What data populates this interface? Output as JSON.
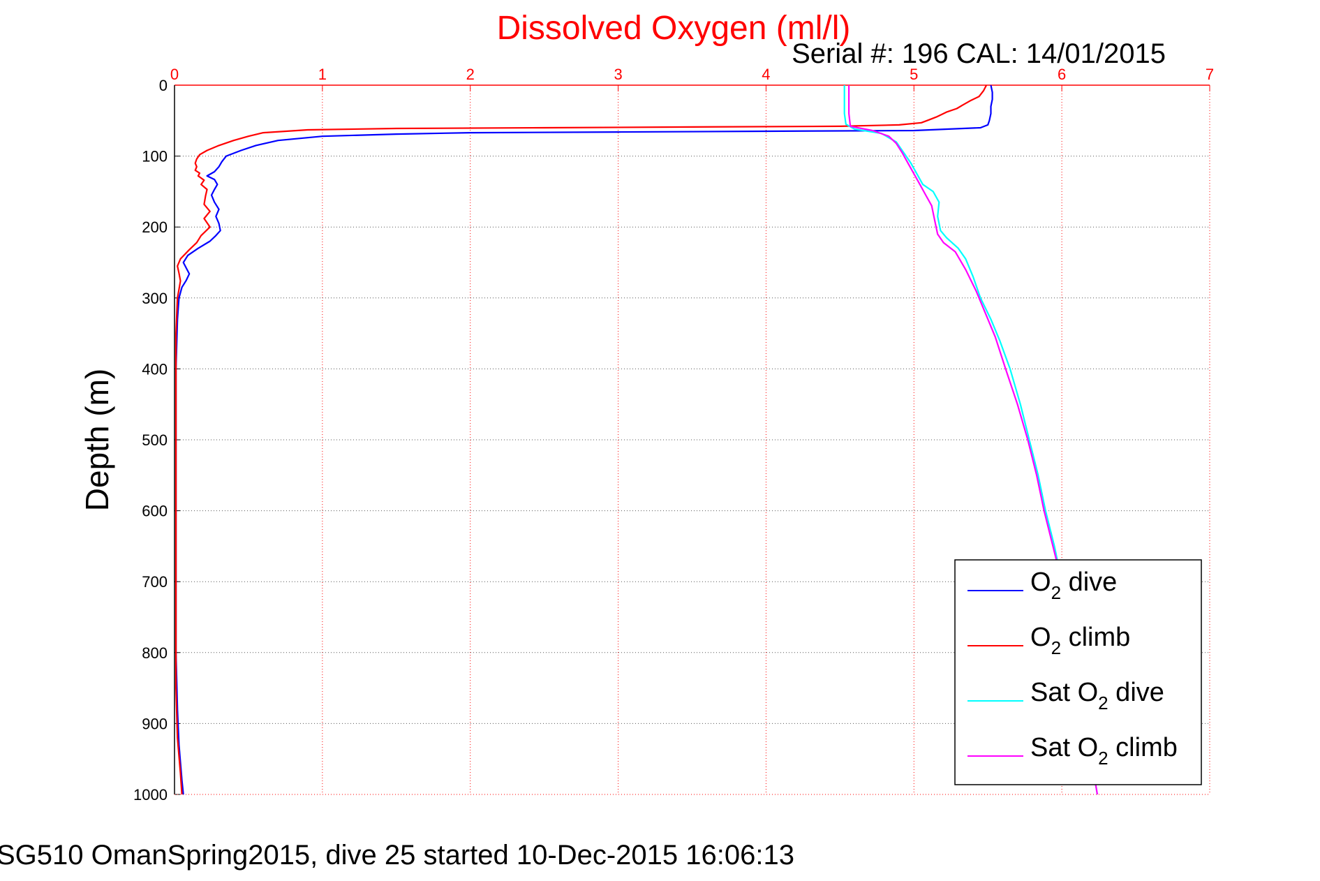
{
  "chart_data": {
    "type": "line",
    "title": "Dissolved Oxygen (ml/l)",
    "subtitle": "Serial #: 196  CAL: 14/01/2015",
    "ylabel": "Depth (m)",
    "xlim": [
      0,
      7
    ],
    "ylim": [
      0,
      1000
    ],
    "y_reversed": true,
    "x_axis_position": "top",
    "x_ticks": [
      "0",
      "1",
      "2",
      "3",
      "4",
      "5",
      "6",
      "7"
    ],
    "y_ticks": [
      "0",
      "100",
      "200",
      "300",
      "400",
      "500",
      "600",
      "700",
      "800",
      "900",
      "1000"
    ],
    "grid": true,
    "legend_position": "bottom-right",
    "footer": "SG510 OmanSpring2015, dive 25 started 10-Dec-2015 16:06:13",
    "series": [
      {
        "name": "O2 dive",
        "legend_main": "O",
        "legend_sub": "2",
        "legend_rest": " dive",
        "color": "#0000ff",
        "points": [
          [
            5.52,
            0
          ],
          [
            5.53,
            10
          ],
          [
            5.53,
            20
          ],
          [
            5.52,
            30
          ],
          [
            5.52,
            40
          ],
          [
            5.51,
            50
          ],
          [
            5.5,
            56
          ],
          [
            5.45,
            60
          ],
          [
            5.0,
            64
          ],
          [
            4.0,
            65
          ],
          [
            3.0,
            66
          ],
          [
            2.0,
            67
          ],
          [
            1.5,
            69
          ],
          [
            1.0,
            72
          ],
          [
            0.7,
            78
          ],
          [
            0.55,
            85
          ],
          [
            0.45,
            92
          ],
          [
            0.35,
            100
          ],
          [
            0.32,
            108
          ],
          [
            0.3,
            115
          ],
          [
            0.27,
            122
          ],
          [
            0.22,
            128
          ],
          [
            0.27,
            133
          ],
          [
            0.29,
            140
          ],
          [
            0.27,
            147
          ],
          [
            0.25,
            155
          ],
          [
            0.27,
            165
          ],
          [
            0.3,
            175
          ],
          [
            0.28,
            185
          ],
          [
            0.3,
            195
          ],
          [
            0.31,
            205
          ],
          [
            0.28,
            212
          ],
          [
            0.24,
            220
          ],
          [
            0.16,
            230
          ],
          [
            0.09,
            240
          ],
          [
            0.06,
            250
          ],
          [
            0.08,
            258
          ],
          [
            0.1,
            266
          ],
          [
            0.08,
            275
          ],
          [
            0.05,
            285
          ],
          [
            0.03,
            300
          ],
          [
            0.02,
            330
          ],
          [
            0.01,
            400
          ],
          [
            0.01,
            500
          ],
          [
            0.01,
            600
          ],
          [
            0.01,
            700
          ],
          [
            0.01,
            800
          ],
          [
            0.02,
            880
          ],
          [
            0.03,
            930
          ],
          [
            0.05,
            980
          ],
          [
            0.06,
            1000
          ]
        ]
      },
      {
        "name": "O2 climb",
        "legend_main": "O",
        "legend_sub": "2",
        "legend_rest": " climb",
        "color": "#ff0000",
        "points": [
          [
            5.49,
            0
          ],
          [
            5.47,
            8
          ],
          [
            5.44,
            16
          ],
          [
            5.38,
            22
          ],
          [
            5.33,
            28
          ],
          [
            5.29,
            33
          ],
          [
            5.22,
            38
          ],
          [
            5.18,
            42
          ],
          [
            5.15,
            45
          ],
          [
            5.1,
            49
          ],
          [
            5.05,
            53
          ],
          [
            4.9,
            56
          ],
          [
            4.5,
            58
          ],
          [
            3.5,
            59
          ],
          [
            2.5,
            60
          ],
          [
            1.5,
            61
          ],
          [
            0.9,
            63
          ],
          [
            0.6,
            67
          ],
          [
            0.5,
            72
          ],
          [
            0.4,
            78
          ],
          [
            0.3,
            85
          ],
          [
            0.22,
            92
          ],
          [
            0.17,
            98
          ],
          [
            0.15,
            104
          ],
          [
            0.14,
            110
          ],
          [
            0.15,
            115
          ],
          [
            0.14,
            120
          ],
          [
            0.17,
            124
          ],
          [
            0.16,
            128
          ],
          [
            0.2,
            134
          ],
          [
            0.18,
            140
          ],
          [
            0.22,
            147
          ],
          [
            0.21,
            156
          ],
          [
            0.2,
            168
          ],
          [
            0.24,
            178
          ],
          [
            0.2,
            188
          ],
          [
            0.24,
            200
          ],
          [
            0.18,
            212
          ],
          [
            0.15,
            222
          ],
          [
            0.1,
            232
          ],
          [
            0.04,
            245
          ],
          [
            0.02,
            255
          ],
          [
            0.03,
            265
          ],
          [
            0.04,
            276
          ],
          [
            0.03,
            288
          ],
          [
            0.02,
            300
          ],
          [
            0.01,
            350
          ],
          [
            0.01,
            450
          ],
          [
            0.01,
            550
          ],
          [
            0.01,
            650
          ],
          [
            0.01,
            750
          ],
          [
            0.01,
            850
          ],
          [
            0.02,
            920
          ],
          [
            0.04,
            970
          ],
          [
            0.05,
            1000
          ]
        ]
      },
      {
        "name": "Sat O2 dive",
        "legend_main": "Sat O",
        "legend_sub": "2",
        "legend_rest": " dive",
        "color": "#00ffff",
        "points": [
          [
            4.53,
            0
          ],
          [
            4.53,
            20
          ],
          [
            4.53,
            40
          ],
          [
            4.54,
            55
          ],
          [
            4.6,
            62
          ],
          [
            4.78,
            68
          ],
          [
            4.88,
            80
          ],
          [
            4.93,
            95
          ],
          [
            4.98,
            110
          ],
          [
            5.02,
            125
          ],
          [
            5.06,
            140
          ],
          [
            5.13,
            150
          ],
          [
            5.17,
            165
          ],
          [
            5.16,
            185
          ],
          [
            5.18,
            205
          ],
          [
            5.22,
            215
          ],
          [
            5.3,
            230
          ],
          [
            5.35,
            245
          ],
          [
            5.4,
            270
          ],
          [
            5.45,
            300
          ],
          [
            5.52,
            330
          ],
          [
            5.58,
            360
          ],
          [
            5.65,
            400
          ],
          [
            5.72,
            450
          ],
          [
            5.78,
            500
          ],
          [
            5.84,
            550
          ],
          [
            5.89,
            600
          ],
          [
            5.95,
            650
          ],
          [
            6.0,
            700
          ],
          [
            6.08,
            800
          ],
          [
            6.16,
            900
          ],
          [
            6.24,
            1000
          ]
        ]
      },
      {
        "name": "Sat O2 climb",
        "legend_main": "Sat O",
        "legend_sub": "2",
        "legend_rest": " climb",
        "color": "#ff00ff",
        "points": [
          [
            4.56,
            0
          ],
          [
            4.56,
            20
          ],
          [
            4.56,
            40
          ],
          [
            4.57,
            58
          ],
          [
            4.72,
            64
          ],
          [
            4.83,
            72
          ],
          [
            4.88,
            82
          ],
          [
            4.92,
            95
          ],
          [
            4.96,
            110
          ],
          [
            5.0,
            125
          ],
          [
            5.04,
            140
          ],
          [
            5.08,
            155
          ],
          [
            5.12,
            170
          ],
          [
            5.14,
            190
          ],
          [
            5.16,
            210
          ],
          [
            5.2,
            222
          ],
          [
            5.28,
            235
          ],
          [
            5.35,
            260
          ],
          [
            5.42,
            290
          ],
          [
            5.48,
            320
          ],
          [
            5.55,
            355
          ],
          [
            5.62,
            400
          ],
          [
            5.7,
            450
          ],
          [
            5.77,
            500
          ],
          [
            5.83,
            550
          ],
          [
            5.88,
            600
          ],
          [
            5.94,
            650
          ],
          [
            6.0,
            700
          ],
          [
            6.08,
            800
          ],
          [
            6.16,
            900
          ],
          [
            6.24,
            1000
          ]
        ]
      }
    ]
  }
}
